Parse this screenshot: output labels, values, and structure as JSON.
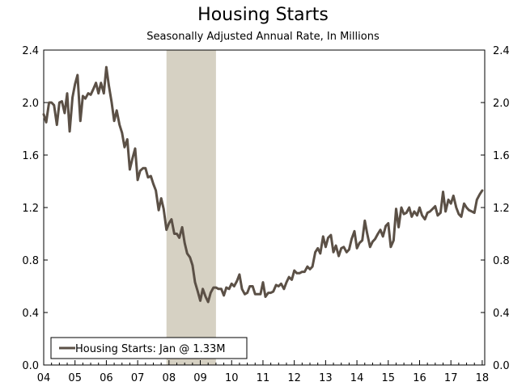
{
  "chart_data": {
    "type": "line",
    "title": "Housing Starts",
    "subtitle": "Seasonally Adjusted Annual Rate, In Millions",
    "ylim": [
      0.0,
      2.4
    ],
    "yticks": [
      "0.0",
      "0.4",
      "0.8",
      "1.2",
      "1.6",
      "2.0",
      "2.4"
    ],
    "ytick_values": [
      0.0,
      0.4,
      0.8,
      1.2,
      1.6,
      2.0,
      2.4
    ],
    "xlim": [
      2004.0,
      2018.08
    ],
    "xticks": [
      "04",
      "05",
      "06",
      "07",
      "08",
      "09",
      "10",
      "11",
      "12",
      "13",
      "14",
      "15",
      "16",
      "17",
      "18"
    ],
    "xtick_values": [
      2004,
      2005,
      2006,
      2007,
      2008,
      2009,
      2010,
      2011,
      2012,
      2013,
      2014,
      2015,
      2016,
      2017,
      2018
    ],
    "recession_shading": [
      2007.92,
      2009.5
    ],
    "legend": {
      "label": "Housing Starts: Jan @ 1.33M",
      "position": "bottom-left"
    },
    "grid": false,
    "colors": {
      "line": "#5b5046",
      "recession": "#d6d1c3",
      "axis": "#000000"
    },
    "series": [
      {
        "name": "Housing Starts: Jan @ 1.33M",
        "x": [
          2004.0,
          2004.08,
          2004.17,
          2004.25,
          2004.33,
          2004.42,
          2004.5,
          2004.58,
          2004.67,
          2004.75,
          2004.83,
          2004.92,
          2005.0,
          2005.08,
          2005.17,
          2005.25,
          2005.33,
          2005.42,
          2005.5,
          2005.58,
          2005.67,
          2005.75,
          2005.83,
          2005.92,
          2006.0,
          2006.08,
          2006.17,
          2006.25,
          2006.33,
          2006.42,
          2006.5,
          2006.58,
          2006.67,
          2006.75,
          2006.83,
          2006.92,
          2007.0,
          2007.08,
          2007.17,
          2007.25,
          2007.33,
          2007.42,
          2007.5,
          2007.58,
          2007.67,
          2007.75,
          2007.83,
          2007.92,
          2008.0,
          2008.08,
          2008.17,
          2008.25,
          2008.33,
          2008.42,
          2008.5,
          2008.58,
          2008.67,
          2008.75,
          2008.83,
          2008.92,
          2009.0,
          2009.08,
          2009.17,
          2009.25,
          2009.33,
          2009.42,
          2009.5,
          2009.58,
          2009.67,
          2009.75,
          2009.83,
          2009.92,
          2010.0,
          2010.08,
          2010.17,
          2010.25,
          2010.33,
          2010.42,
          2010.5,
          2010.58,
          2010.67,
          2010.75,
          2010.83,
          2010.92,
          2011.0,
          2011.08,
          2011.17,
          2011.25,
          2011.33,
          2011.42,
          2011.5,
          2011.58,
          2011.67,
          2011.75,
          2011.83,
          2011.92,
          2012.0,
          2012.08,
          2012.17,
          2012.25,
          2012.33,
          2012.42,
          2012.5,
          2012.58,
          2012.67,
          2012.75,
          2012.83,
          2012.92,
          2013.0,
          2013.08,
          2013.17,
          2013.25,
          2013.33,
          2013.42,
          2013.5,
          2013.58,
          2013.67,
          2013.75,
          2013.83,
          2013.92,
          2014.0,
          2014.08,
          2014.17,
          2014.25,
          2014.33,
          2014.42,
          2014.5,
          2014.58,
          2014.67,
          2014.75,
          2014.83,
          2014.92,
          2015.0,
          2015.08,
          2015.17,
          2015.25,
          2015.33,
          2015.42,
          2015.5,
          2015.58,
          2015.67,
          2015.75,
          2015.83,
          2015.92,
          2016.0,
          2016.08,
          2016.17,
          2016.25,
          2016.33,
          2016.42,
          2016.5,
          2016.58,
          2016.67,
          2016.75,
          2016.83,
          2016.92,
          2017.0,
          2017.08,
          2017.17,
          2017.25,
          2017.33,
          2017.42,
          2017.5,
          2017.58,
          2017.67,
          2017.75,
          2017.83,
          2017.92,
          2018.0
        ],
        "values": [
          1.91,
          1.85,
          2.0,
          2.0,
          1.98,
          1.83,
          2.0,
          2.01,
          1.92,
          2.07,
          1.78,
          2.04,
          2.14,
          2.21,
          1.86,
          2.05,
          2.03,
          2.07,
          2.06,
          2.1,
          2.15,
          2.07,
          2.15,
          2.07,
          2.27,
          2.13,
          2.0,
          1.86,
          1.94,
          1.83,
          1.77,
          1.66,
          1.72,
          1.49,
          1.57,
          1.65,
          1.41,
          1.48,
          1.5,
          1.5,
          1.43,
          1.44,
          1.38,
          1.33,
          1.18,
          1.27,
          1.19,
          1.03,
          1.08,
          1.11,
          1.0,
          1.0,
          0.97,
          1.05,
          0.93,
          0.85,
          0.82,
          0.76,
          0.63,
          0.56,
          0.49,
          0.58,
          0.52,
          0.48,
          0.55,
          0.59,
          0.59,
          0.58,
          0.58,
          0.53,
          0.59,
          0.58,
          0.62,
          0.6,
          0.64,
          0.69,
          0.58,
          0.54,
          0.55,
          0.6,
          0.6,
          0.54,
          0.54,
          0.54,
          0.63,
          0.52,
          0.55,
          0.55,
          0.56,
          0.61,
          0.6,
          0.62,
          0.58,
          0.63,
          0.67,
          0.65,
          0.72,
          0.7,
          0.7,
          0.71,
          0.71,
          0.75,
          0.73,
          0.75,
          0.86,
          0.89,
          0.85,
          0.98,
          0.9,
          0.97,
          0.99,
          0.86,
          0.91,
          0.83,
          0.89,
          0.9,
          0.86,
          0.88,
          0.96,
          1.02,
          0.89,
          0.93,
          0.95,
          1.1,
          1.0,
          0.9,
          0.94,
          0.96,
          1.0,
          1.03,
          0.98,
          1.06,
          1.08,
          0.9,
          0.95,
          1.19,
          1.05,
          1.2,
          1.15,
          1.16,
          1.2,
          1.13,
          1.17,
          1.14,
          1.2,
          1.14,
          1.11,
          1.16,
          1.17,
          1.19,
          1.21,
          1.14,
          1.16,
          1.32,
          1.17,
          1.26,
          1.23,
          1.29,
          1.2,
          1.15,
          1.13,
          1.23,
          1.2,
          1.18,
          1.17,
          1.16,
          1.26,
          1.3,
          1.33
        ]
      }
    ]
  }
}
